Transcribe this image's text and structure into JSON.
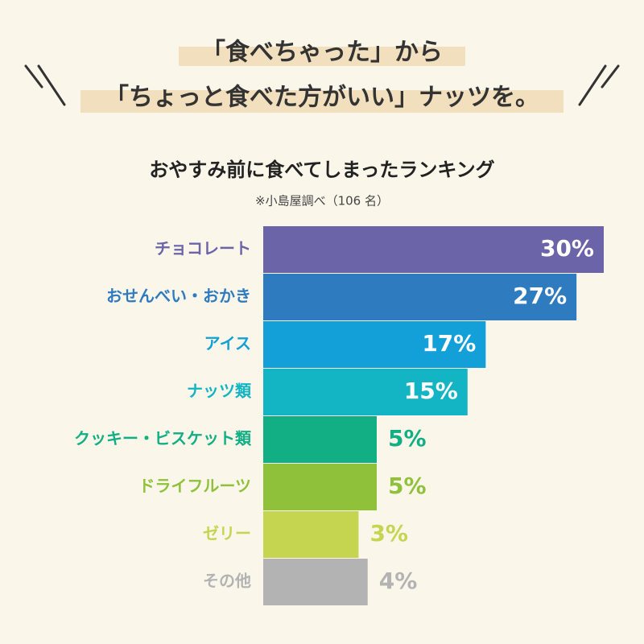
{
  "chart_data": {
    "type": "bar",
    "orientation": "horizontal",
    "title": [
      "「食べちゃった」から",
      "「ちょっと食べた方がいい」ナッツを。"
    ],
    "subtitle": "おやすみ前に食べてしまったランキング",
    "note": "※小島屋調べ（106 名）",
    "categories": [
      "チョコレート",
      "おせんべい・おかき",
      "アイス",
      "ナッツ類",
      "クッキー・ビスケット類",
      "ドライフルーツ",
      "ゼリー",
      "その他"
    ],
    "values": [
      30,
      27,
      17,
      15,
      5,
      5,
      3,
      4
    ],
    "value_labels": [
      "30%",
      "27%",
      "17%",
      "15%",
      "5%",
      "5%",
      "3%",
      "4%"
    ],
    "colors": [
      "#6b64a8",
      "#2f7bbf",
      "#139fd8",
      "#13b4c4",
      "#12ae84",
      "#8fc13b",
      "#c5d54f",
      "#b3b3b3"
    ],
    "xlim": [
      -7.5,
      30
    ]
  }
}
